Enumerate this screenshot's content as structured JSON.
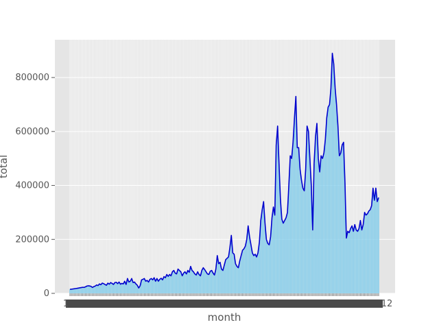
{
  "chart_data": {
    "type": "bar",
    "title": "",
    "xlabel": "month",
    "ylabel": "total",
    "ylim": [
      0,
      940000
    ],
    "yticks": [
      0,
      200000,
      400000,
      600000,
      800000
    ],
    "ytick_labels": [
      "0",
      "200000",
      "400000",
      "600000",
      "800000"
    ],
    "x_first_tick_label": "1",
    "x_last_tick_label": "12",
    "grid": true,
    "legend": "none",
    "colors": {
      "bars": "#87ceeb",
      "line": "#0000cd",
      "background": "#e5e5e5",
      "grid": "#ffffff"
    },
    "values": [
      15000,
      15500,
      16200,
      17000,
      17800,
      18500,
      19500,
      20500,
      21500,
      22500,
      22000,
      24000,
      27000,
      28000,
      27500,
      26000,
      22000,
      25000,
      27000,
      31000,
      29000,
      35000,
      32000,
      38000,
      36000,
      33000,
      30000,
      38000,
      34000,
      40000,
      37000,
      33000,
      40000,
      41000,
      36000,
      42000,
      34000,
      37000,
      35000,
      45000,
      33000,
      55000,
      42000,
      45000,
      55000,
      40000,
      42000,
      35000,
      30000,
      20000,
      28000,
      50000,
      52000,
      55000,
      45000,
      48000,
      42000,
      52000,
      55000,
      50000,
      58000,
      45000,
      55000,
      45000,
      52000,
      56000,
      50000,
      62000,
      58000,
      70000,
      63000,
      70000,
      65000,
      80000,
      85000,
      75000,
      72000,
      90000,
      85000,
      80000,
      65000,
      75000,
      80000,
      72000,
      85000,
      78000,
      100000,
      85000,
      80000,
      72000,
      68000,
      80000,
      70000,
      65000,
      85000,
      95000,
      88000,
      80000,
      72000,
      70000,
      82000,
      85000,
      75000,
      68000,
      90000,
      140000,
      110000,
      115000,
      90000,
      85000,
      105000,
      125000,
      130000,
      135000,
      170000,
      215000,
      150000,
      145000,
      110000,
      100000,
      95000,
      120000,
      140000,
      160000,
      165000,
      175000,
      200000,
      250000,
      210000,
      180000,
      150000,
      140000,
      145000,
      135000,
      150000,
      190000,
      270000,
      310000,
      340000,
      260000,
      200000,
      185000,
      180000,
      210000,
      280000,
      320000,
      290000,
      550000,
      620000,
      480000,
      350000,
      275000,
      260000,
      270000,
      280000,
      300000,
      400000,
      510000,
      500000,
      560000,
      650000,
      730000,
      540000,
      540000,
      460000,
      420000,
      390000,
      380000,
      460000,
      620000,
      600000,
      500000,
      400000,
      235000,
      480000,
      580000,
      630000,
      500000,
      450000,
      510000,
      500000,
      520000,
      570000,
      650000,
      690000,
      700000,
      760000,
      890000,
      850000,
      760000,
      700000,
      620000,
      510000,
      520000,
      550000,
      560000,
      410000,
      205000,
      230000,
      225000,
      240000,
      250000,
      230000,
      255000,
      235000,
      230000,
      240000,
      270000,
      235000,
      255000,
      300000,
      290000,
      295000,
      305000,
      310000,
      325000,
      390000,
      345000,
      390000,
      340000,
      355000
    ]
  }
}
